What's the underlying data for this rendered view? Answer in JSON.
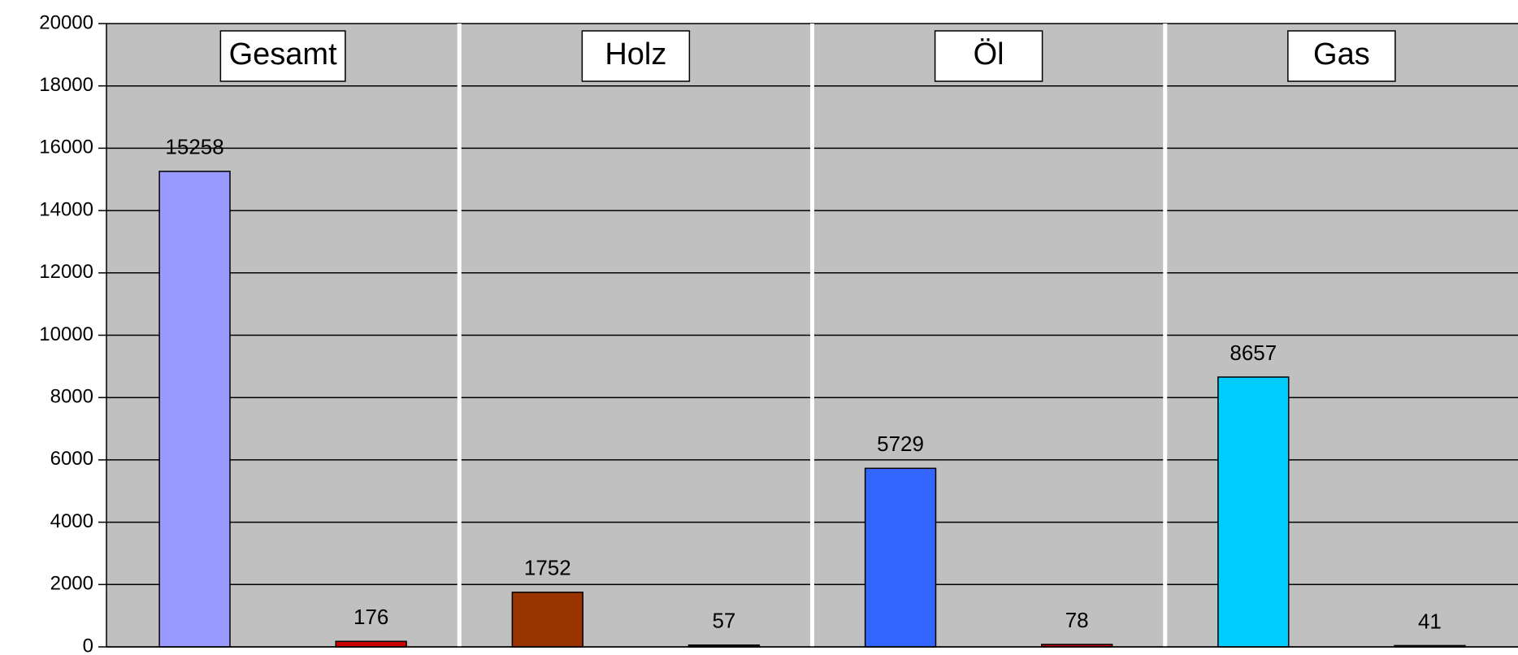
{
  "chart_data": {
    "type": "bar",
    "panels": [
      {
        "title": "Gesamt",
        "values": [
          15258,
          176
        ],
        "colors": [
          "#9999ff",
          "#cc0000"
        ]
      },
      {
        "title": "Holz",
        "values": [
          1752,
          57
        ],
        "colors": [
          "#993300",
          "#1a1a1a"
        ]
      },
      {
        "title": "Öl",
        "values": [
          5729,
          78
        ],
        "colors": [
          "#3366ff",
          "#cc0000"
        ]
      },
      {
        "title": "Gas",
        "values": [
          8657,
          41
        ],
        "colors": [
          "#00ccff",
          "#1a1a1a"
        ]
      }
    ],
    "ylim": [
      0,
      20000
    ],
    "yticks": [
      0,
      2000,
      4000,
      6000,
      8000,
      10000,
      12000,
      14000,
      16000,
      18000,
      20000
    ],
    "grid": true,
    "background": "#c0c0c0"
  }
}
